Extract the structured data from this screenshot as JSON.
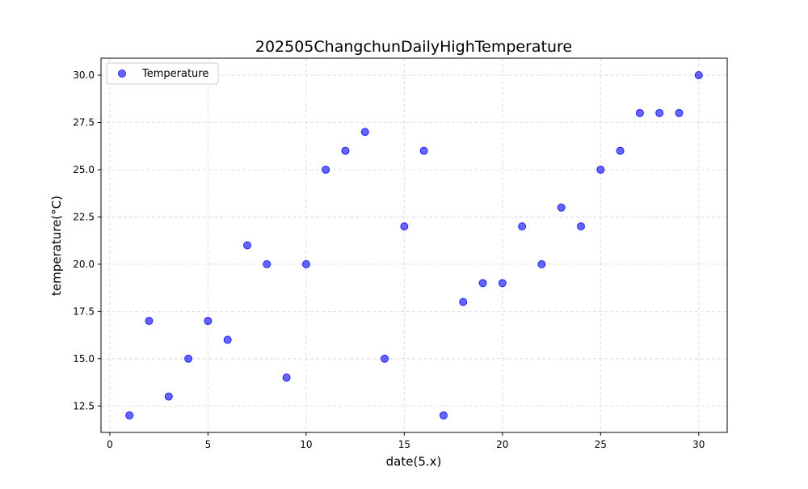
{
  "chart_data": {
    "type": "scatter",
    "title": "202505ChangchunDailyHighTemperature",
    "xlabel": "date(5.x)",
    "ylabel": "temperature(°C)",
    "xlim": [
      -0.45,
      31.45
    ],
    "ylim": [
      11.1,
      30.9
    ],
    "xticks": [
      0,
      5,
      10,
      15,
      20,
      25,
      30
    ],
    "xtick_labels": [
      "0",
      "5",
      "10",
      "15",
      "20",
      "25",
      "30"
    ],
    "yticks": [
      12.5,
      15.0,
      17.5,
      20.0,
      22.5,
      25.0,
      27.5,
      30.0
    ],
    "ytick_labels": [
      "12.5",
      "15.0",
      "17.5",
      "20.0",
      "22.5",
      "25.0",
      "27.5",
      "30.0"
    ],
    "grid": true,
    "legend_position": "top-left",
    "series": [
      {
        "name": "Temperature",
        "color": "#0000ff",
        "points": [
          {
            "x": 1,
            "y": 12
          },
          {
            "x": 2,
            "y": 17
          },
          {
            "x": 3,
            "y": 13
          },
          {
            "x": 4,
            "y": 15
          },
          {
            "x": 5,
            "y": 17
          },
          {
            "x": 6,
            "y": 16
          },
          {
            "x": 7,
            "y": 21
          },
          {
            "x": 8,
            "y": 20
          },
          {
            "x": 9,
            "y": 14
          },
          {
            "x": 10,
            "y": 20
          },
          {
            "x": 11,
            "y": 25
          },
          {
            "x": 12,
            "y": 26
          },
          {
            "x": 13,
            "y": 27
          },
          {
            "x": 14,
            "y": 15
          },
          {
            "x": 15,
            "y": 22
          },
          {
            "x": 16,
            "y": 26
          },
          {
            "x": 17,
            "y": 12
          },
          {
            "x": 18,
            "y": 18
          },
          {
            "x": 19,
            "y": 19
          },
          {
            "x": 20,
            "y": 19
          },
          {
            "x": 21,
            "y": 22
          },
          {
            "x": 22,
            "y": 20
          },
          {
            "x": 23,
            "y": 23
          },
          {
            "x": 24,
            "y": 22
          },
          {
            "x": 25,
            "y": 25
          },
          {
            "x": 26,
            "y": 26
          },
          {
            "x": 27,
            "y": 28
          },
          {
            "x": 28,
            "y": 28
          },
          {
            "x": 29,
            "y": 28
          },
          {
            "x": 30,
            "y": 30
          }
        ]
      }
    ]
  }
}
